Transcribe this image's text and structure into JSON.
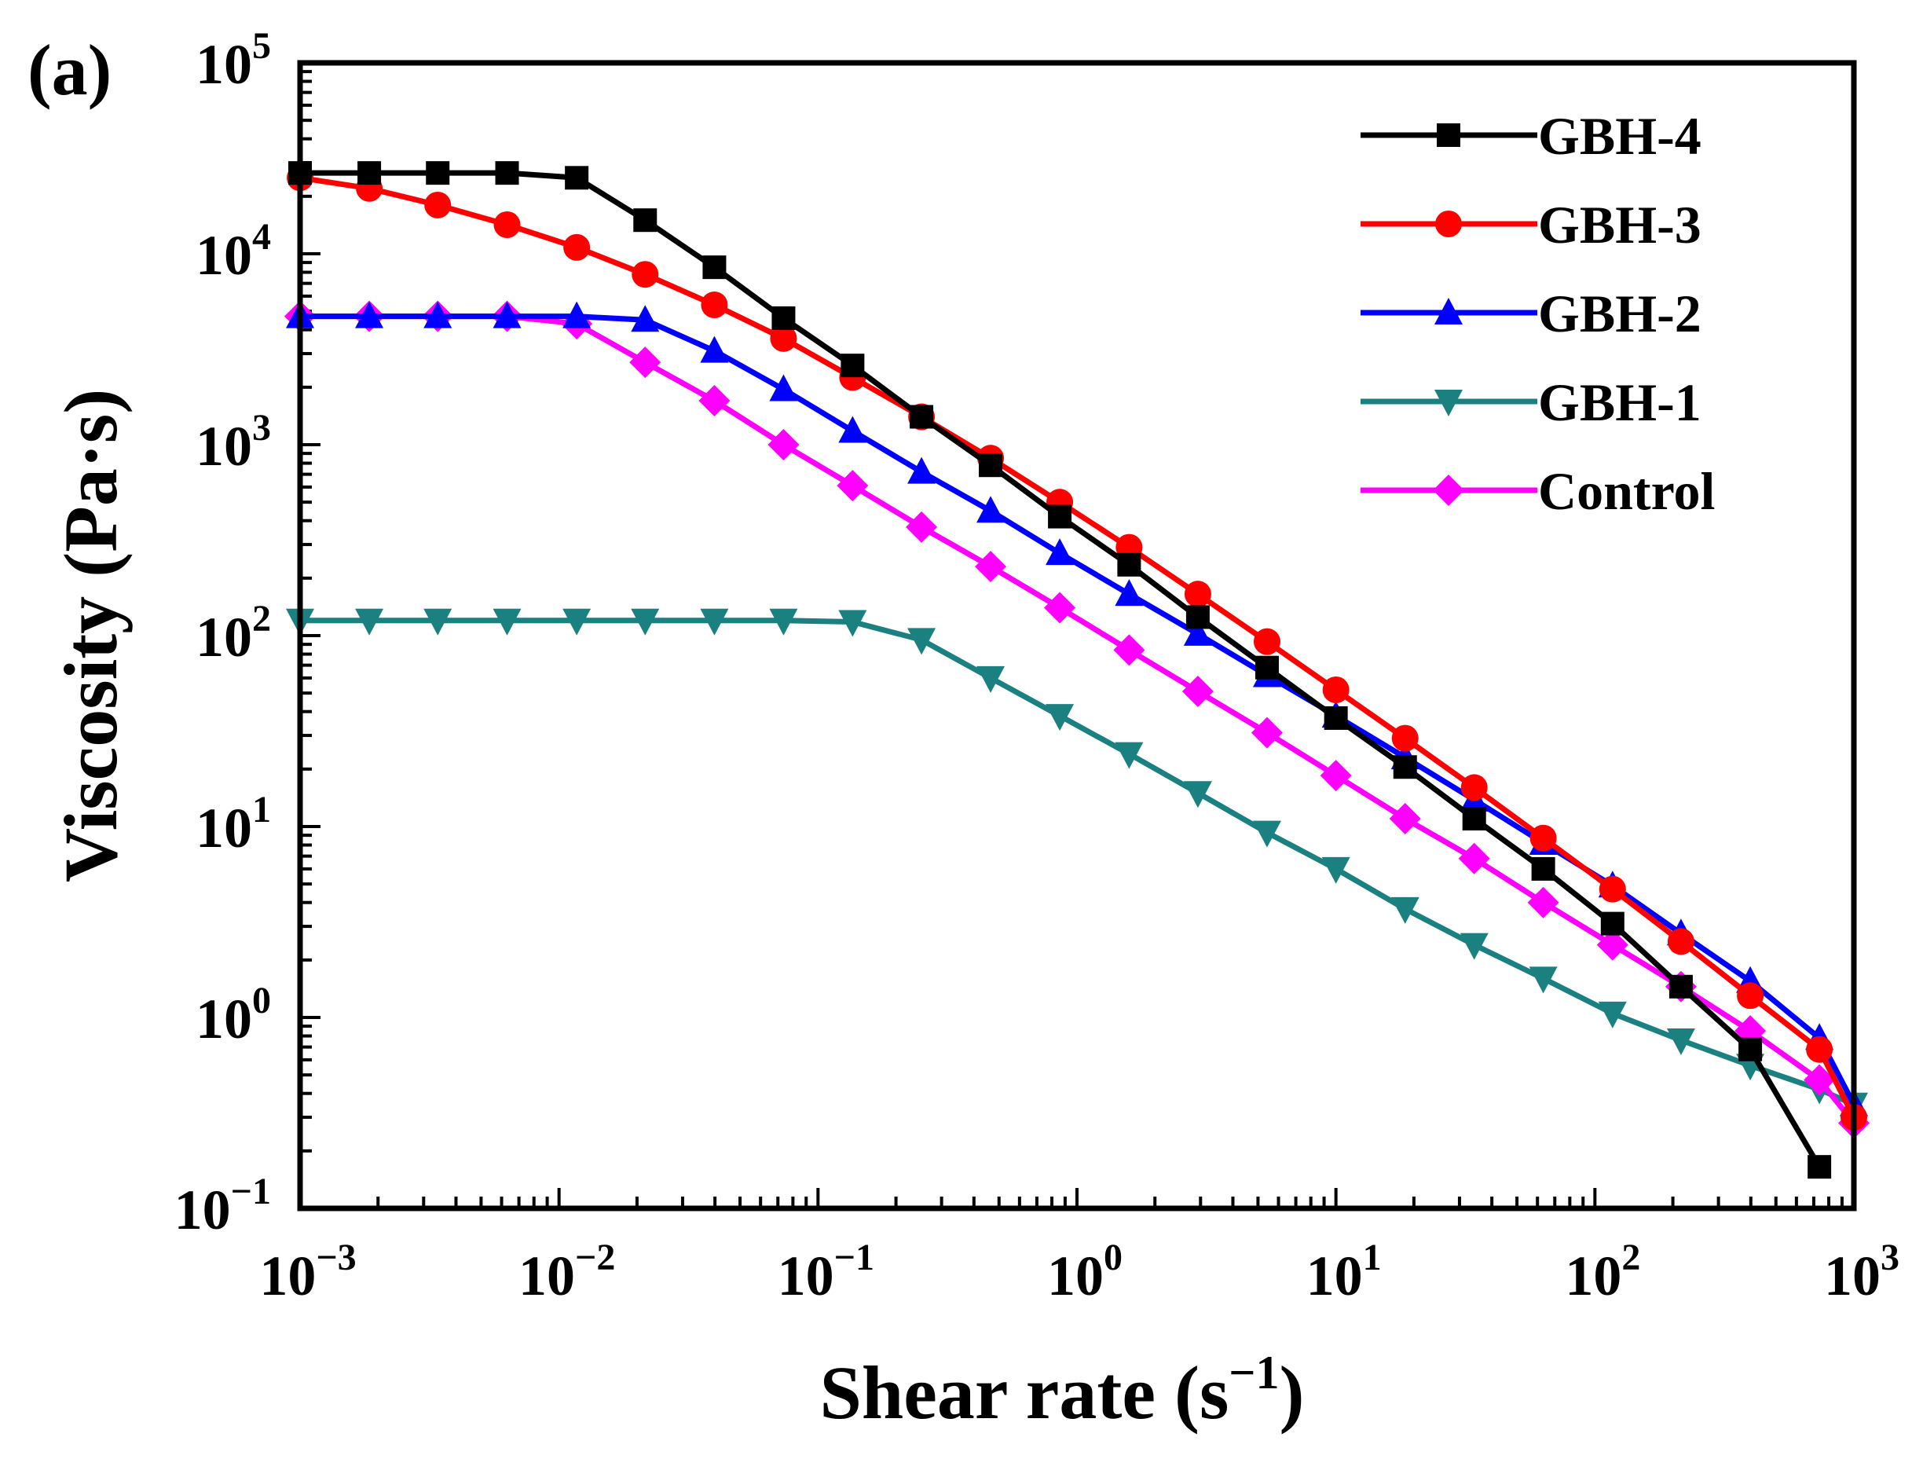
{
  "chart_data": {
    "type": "line",
    "panel_label": "(a)",
    "xlabel": "Shear rate (s",
    "xlabel_exp": "−1",
    "xlabel_close": ")",
    "ylabel": "Viscosity (Pa·s)",
    "xscale": "log",
    "yscale": "log",
    "xlim": [
      0.001,
      1000
    ],
    "ylim": [
      0.1,
      100000
    ],
    "x_ticks": [
      {
        "base": "10",
        "exp": "−3"
      },
      {
        "base": "10",
        "exp": "−2"
      },
      {
        "base": "10",
        "exp": "−1"
      },
      {
        "base": "10",
        "exp": "0"
      },
      {
        "base": "10",
        "exp": "1"
      },
      {
        "base": "10",
        "exp": "2"
      },
      {
        "base": "10",
        "exp": "3"
      }
    ],
    "y_ticks": [
      {
        "base": "10",
        "exp": "−1"
      },
      {
        "base": "10",
        "exp": "0"
      },
      {
        "base": "10",
        "exp": "1"
      },
      {
        "base": "10",
        "exp": "2"
      },
      {
        "base": "10",
        "exp": "3"
      },
      {
        "base": "10",
        "exp": "4"
      },
      {
        "base": "10",
        "exp": "5"
      }
    ],
    "legend_position": "top-right",
    "series": [
      {
        "name": "GBH-4",
        "color": "#000000",
        "marker": "square",
        "x": [
          0.001,
          0.00185,
          0.0034,
          0.0063,
          0.0117,
          0.0215,
          0.0398,
          0.0736,
          0.136,
          0.251,
          0.464,
          0.858,
          1.59,
          2.93,
          5.42,
          10.0,
          18.5,
          34.2,
          63.2,
          117,
          215,
          398,
          736
        ],
        "y": [
          26500,
          26500,
          26500,
          26500,
          25000,
          15000,
          8500,
          4600,
          2600,
          1400,
          780,
          420,
          235,
          125,
          68,
          37,
          20.5,
          11,
          6,
          3.1,
          1.45,
          0.68,
          0.165
        ]
      },
      {
        "name": "GBH-3",
        "color": "#ff0000",
        "marker": "circle",
        "x": [
          0.001,
          0.00185,
          0.0034,
          0.0063,
          0.0117,
          0.0215,
          0.0398,
          0.0736,
          0.136,
          0.251,
          0.464,
          0.858,
          1.59,
          2.93,
          5.42,
          10.0,
          18.5,
          34.2,
          63.2,
          117,
          215,
          398,
          736,
          1000
        ],
        "y": [
          25000,
          22000,
          18000,
          14200,
          10800,
          7800,
          5400,
          3600,
          2250,
          1400,
          850,
          500,
          290,
          165,
          93,
          52,
          29,
          16,
          8.7,
          4.7,
          2.5,
          1.3,
          0.68,
          0.3
        ]
      },
      {
        "name": "GBH-2",
        "color": "#0000ff",
        "marker": "triangle-up",
        "x": [
          0.001,
          0.00185,
          0.0034,
          0.0063,
          0.0117,
          0.0215,
          0.0398,
          0.0736,
          0.136,
          0.251,
          0.464,
          0.858,
          1.59,
          2.93,
          5.42,
          10.0,
          18.5,
          34.2,
          63.2,
          117,
          215,
          398,
          736,
          1000
        ],
        "y": [
          4700,
          4700,
          4700,
          4700,
          4700,
          4500,
          3100,
          1950,
          1180,
          720,
          450,
          270,
          165,
          102,
          62,
          38,
          23,
          13.8,
          8.2,
          4.9,
          2.75,
          1.55,
          0.78,
          0.35
        ]
      },
      {
        "name": "GBH-1",
        "color": "#1b8080",
        "marker": "triangle-down",
        "x": [
          0.001,
          0.00185,
          0.0034,
          0.0063,
          0.0117,
          0.0215,
          0.0398,
          0.0736,
          0.136,
          0.251,
          0.464,
          0.858,
          1.59,
          2.93,
          5.42,
          10.0,
          18.5,
          34.2,
          63.2,
          117,
          215,
          398,
          736,
          1000
        ],
        "y": [
          120,
          120,
          120,
          120,
          120,
          120,
          120,
          120,
          118,
          95,
          60,
          38,
          24,
          15,
          9.3,
          6,
          3.7,
          2.4,
          1.6,
          1.05,
          0.76,
          0.56,
          0.42,
          0.35
        ]
      },
      {
        "name": "Control",
        "color": "#ff00ff",
        "marker": "diamond",
        "x": [
          0.001,
          0.00185,
          0.0034,
          0.0063,
          0.0117,
          0.0215,
          0.0398,
          0.0736,
          0.136,
          0.251,
          0.464,
          0.858,
          1.59,
          2.93,
          5.42,
          10.0,
          18.5,
          34.2,
          63.2,
          117,
          215,
          398,
          736,
          1000
        ],
        "y": [
          4700,
          4700,
          4700,
          4700,
          4300,
          2700,
          1700,
          1000,
          610,
          370,
          230,
          140,
          84,
          51,
          31,
          18.5,
          11,
          6.8,
          4,
          2.4,
          1.45,
          0.85,
          0.47,
          0.28
        ]
      }
    ]
  }
}
